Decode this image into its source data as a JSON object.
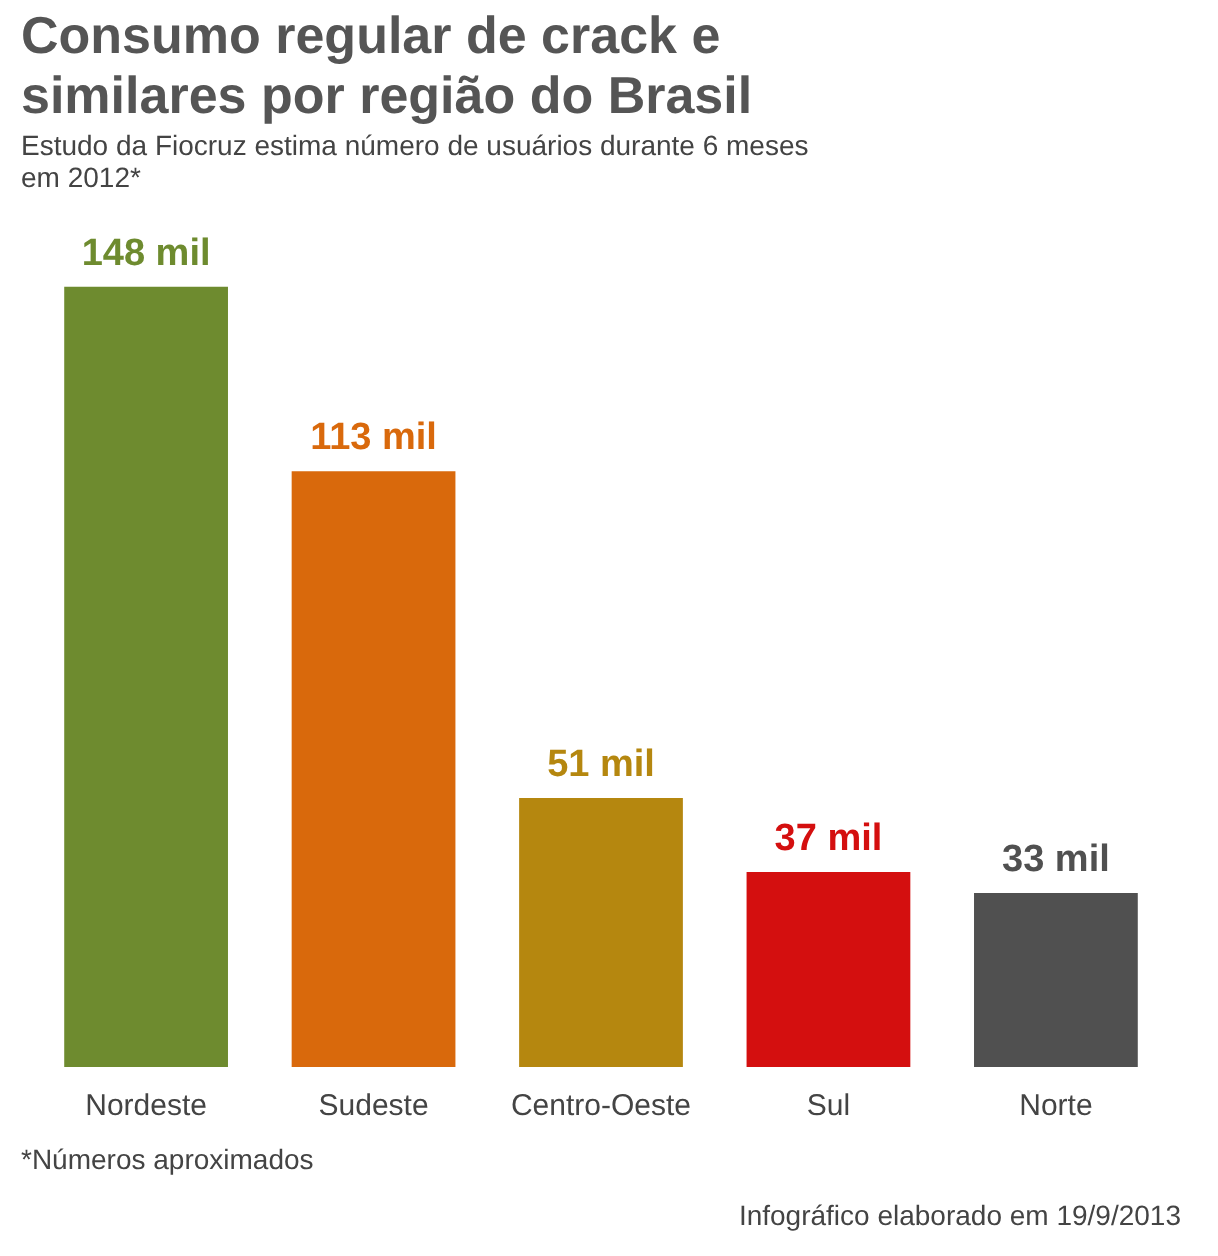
{
  "chart_data": {
    "type": "bar",
    "title": "Consumo regular de crack e similares por região do Brasil",
    "subtitle": "Estudo da Fiocruz estima número de usuários durante 6 meses em 2012*",
    "categories": [
      "Nordeste",
      "Sudeste",
      "Centro-Oeste",
      "Sul",
      "Norte"
    ],
    "values": [
      148,
      113,
      51,
      37,
      33
    ],
    "colors": [
      "#6e8b2f",
      "#d9690c",
      "#b5870f",
      "#d40f0f",
      "#505050"
    ],
    "value_labels": [
      "148 mil",
      "113 mil",
      "51 mil",
      "37 mil",
      "33 mil"
    ],
    "annotations": [
      "*Números aproximados",
      "Infográfico elaborado em 19/9/2013"
    ]
  }
}
